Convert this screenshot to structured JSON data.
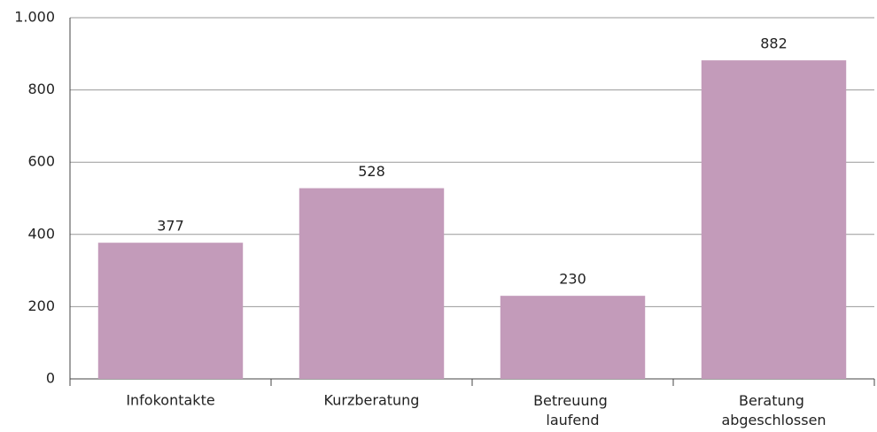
{
  "chart_data": {
    "type": "bar",
    "categories": [
      "Infokontakte",
      "Kurzberatung",
      "Betreuung laufend",
      "Beratung abgeschlossen"
    ],
    "values": [
      377,
      528,
      230,
      882
    ],
    "color": "#c39bba",
    "ylim": [
      0,
      1000
    ],
    "yticks": [
      0,
      200,
      400,
      600,
      800,
      {
        "value": 1000,
        "label": "1.000"
      }
    ],
    "grid": true
  }
}
